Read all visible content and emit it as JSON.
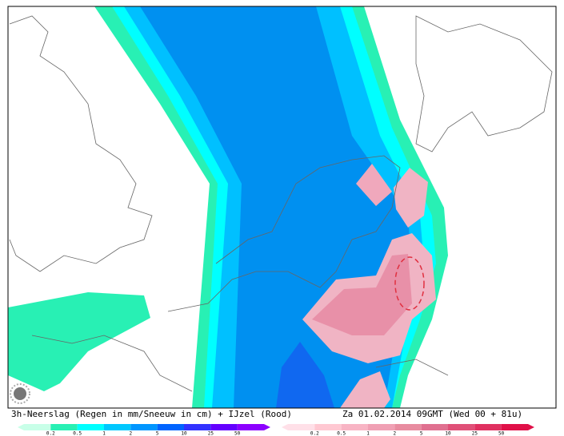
{
  "caption": {
    "left": "3h-Neerslag (Regen in mm/Sneeuw in cm) + IJzel (Rood)",
    "right": "Za 01.02.2014 09GMT (Wed 00 + 81u)"
  },
  "legend_rain": {
    "labels": [
      "0.2",
      "0.5",
      "1",
      "2",
      "5",
      "10",
      "25",
      "50"
    ]
  },
  "legend_ice": {
    "labels": [
      "0.2",
      "0.5",
      "1",
      "2",
      "5",
      "10",
      "25",
      "50"
    ]
  }
}
